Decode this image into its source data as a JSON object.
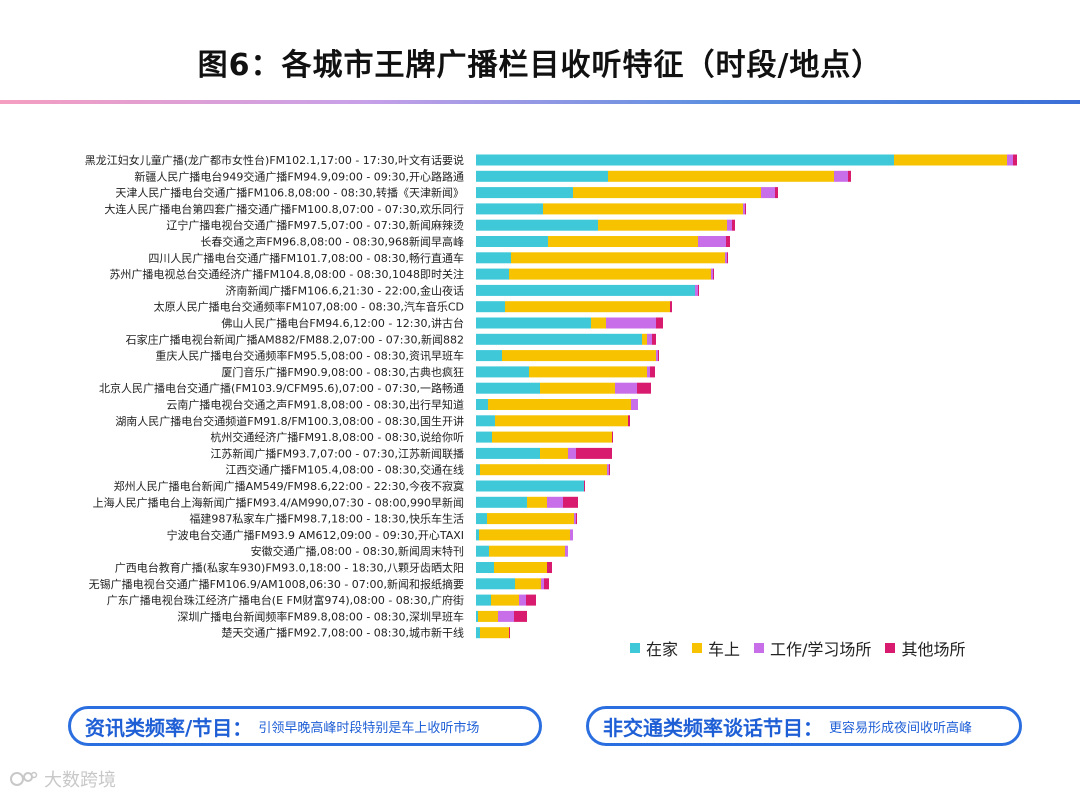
{
  "title": "图6：各城市王牌广播栏目收听特征（时段/地点）",
  "legend": [
    {
      "name": "在家",
      "color": "#3ec8d8"
    },
    {
      "name": "车上",
      "color": "#f7c200"
    },
    {
      "name": "工作/学习场所",
      "color": "#c86ee8"
    },
    {
      "name": "其他场所",
      "color": "#d81b6e"
    }
  ],
  "chart_data": {
    "type": "bar",
    "orientation": "horizontal",
    "stacked": true,
    "categories": [
      "黑龙江妇女儿童广播(龙广都市女性台)FM102.1,17:00 - 17:30,叶文有话要说",
      "新疆人民广播电台949交通广播FM94.9,09:00 - 09:30,开心路路通",
      "天津人民广播电台交通广播FM106.8,08:00 - 08:30,转播《天津新闻》",
      "大连人民广播电台第四套广播交通广播FM100.8,07:00 - 07:30,欢乐同行",
      "辽宁广播电视台交通广播FM97.5,07:00 - 07:30,新闻麻辣烫",
      "长春交通之声FM96.8,08:00 - 08:30,968新闻早高峰",
      "四川人民广播电台交通广播FM101.7,08:00 - 08:30,畅行直通车",
      "苏州广播电视总台交通经济广播FM104.8,08:00 - 08:30,1048即时关注",
      "济南新闻广播FM106.6,21:30 - 22:00,金山夜话",
      "太原人民广播电台交通频率FM107,08:00 - 08:30,汽车音乐CD",
      "佛山人民广播电台FM94.6,12:00 - 12:30,讲古台",
      "石家庄广播电视台新闻广播AM882/FM88.2,07:00 - 07:30,新闻882",
      "重庆人民广播电台交通频率FM95.5,08:00 - 08:30,资讯早班车",
      "厦门音乐广播FM90.9,08:00 - 08:30,古典也疯狂",
      "北京人民广播电台交通广播(FM103.9/CFM95.6),07:00 - 07:30,一路畅通",
      "云南广播电视台交通之声FM91.8,08:00 - 08:30,出行早知道",
      "湖南人民广播电台交通频道FM91.8/FM100.3,08:00 - 08:30,国生开讲",
      "杭州交通经济广播FM91.8,08:00 - 08:30,说给你听",
      "江苏新闻广播FM93.7,07:00 - 07:30,江苏新闻联播",
      "江西交通广播FM105.4,08:00 - 08:30,交通在线",
      "郑州人民广播电台新闻广播AM549/FM98.6,22:00 - 22:30,今夜不寂寞",
      "上海人民广播电台上海新闻广播FM93.4/AM990,07:30 - 08:00,990早新闻",
      "福建987私家车广播FM98.7,18:00 - 18:30,快乐车生活",
      "宁波电台交通广播FM93.9 AM612,09:00 - 09:30,开心TAXI",
      "安徽交通广播,08:00 - 08:30,新闻周末特刊",
      "广西电台教育广播(私家车930)FM93.0,18:00 - 18:30,八颗牙齿晒太阳",
      "无锡广播电视台交通广播FM106.9/AM1008,06:30 - 07:00,新闻和报纸摘要",
      "广东广播电视台珠江经济广播电台(E FM财富974),08:00 - 08:30,广府街",
      "深圳广播电台新闻频率FM89.8,08:00 - 08:30,深圳早班车",
      "楚天交通广播FM92.7,08:00 - 08:30,城市新干线"
    ],
    "series": [
      {
        "name": "在家",
        "values": [
          418,
          132,
          97,
          67,
          122,
          72,
          35,
          33,
          219,
          29,
          115,
          166,
          26,
          53,
          64,
          12,
          19,
          16,
          64,
          4,
          108,
          51,
          11,
          3,
          13,
          18,
          39,
          15,
          2,
          4
        ]
      },
      {
        "name": "车上",
        "values": [
          113,
          226,
          188,
          200,
          129,
          150,
          214,
          202,
          0,
          165,
          15,
          5,
          154,
          118,
          75,
          143,
          133,
          120,
          28,
          127,
          0,
          20,
          87,
          91,
          76,
          53,
          26,
          28,
          20,
          29
        ]
      },
      {
        "name": "工作/学习场所",
        "values": [
          6,
          14,
          14,
          2,
          5,
          28,
          2,
          2,
          3,
          0,
          50,
          5,
          2,
          3,
          22,
          7,
          0,
          0,
          8,
          2,
          0,
          16,
          2,
          3,
          3,
          0,
          3,
          7,
          16,
          0
        ]
      },
      {
        "name": "其他场所",
        "values": [
          4,
          3,
          3,
          1,
          3,
          4,
          1,
          1,
          1,
          2,
          7,
          4,
          1,
          5,
          14,
          0,
          2,
          1,
          36,
          1,
          1,
          15,
          1,
          0,
          0,
          5,
          5,
          10,
          13,
          1
        ]
      }
    ]
  },
  "note_left": {
    "head": "资讯类频率/节目：",
    "sub": "引领早晚高峰时段特别是车上收听市场"
  },
  "note_right": {
    "head": "非交通类频率谈话节目：",
    "sub": "更容易形成夜间收听高峰"
  },
  "watermark": "大数跨境"
}
